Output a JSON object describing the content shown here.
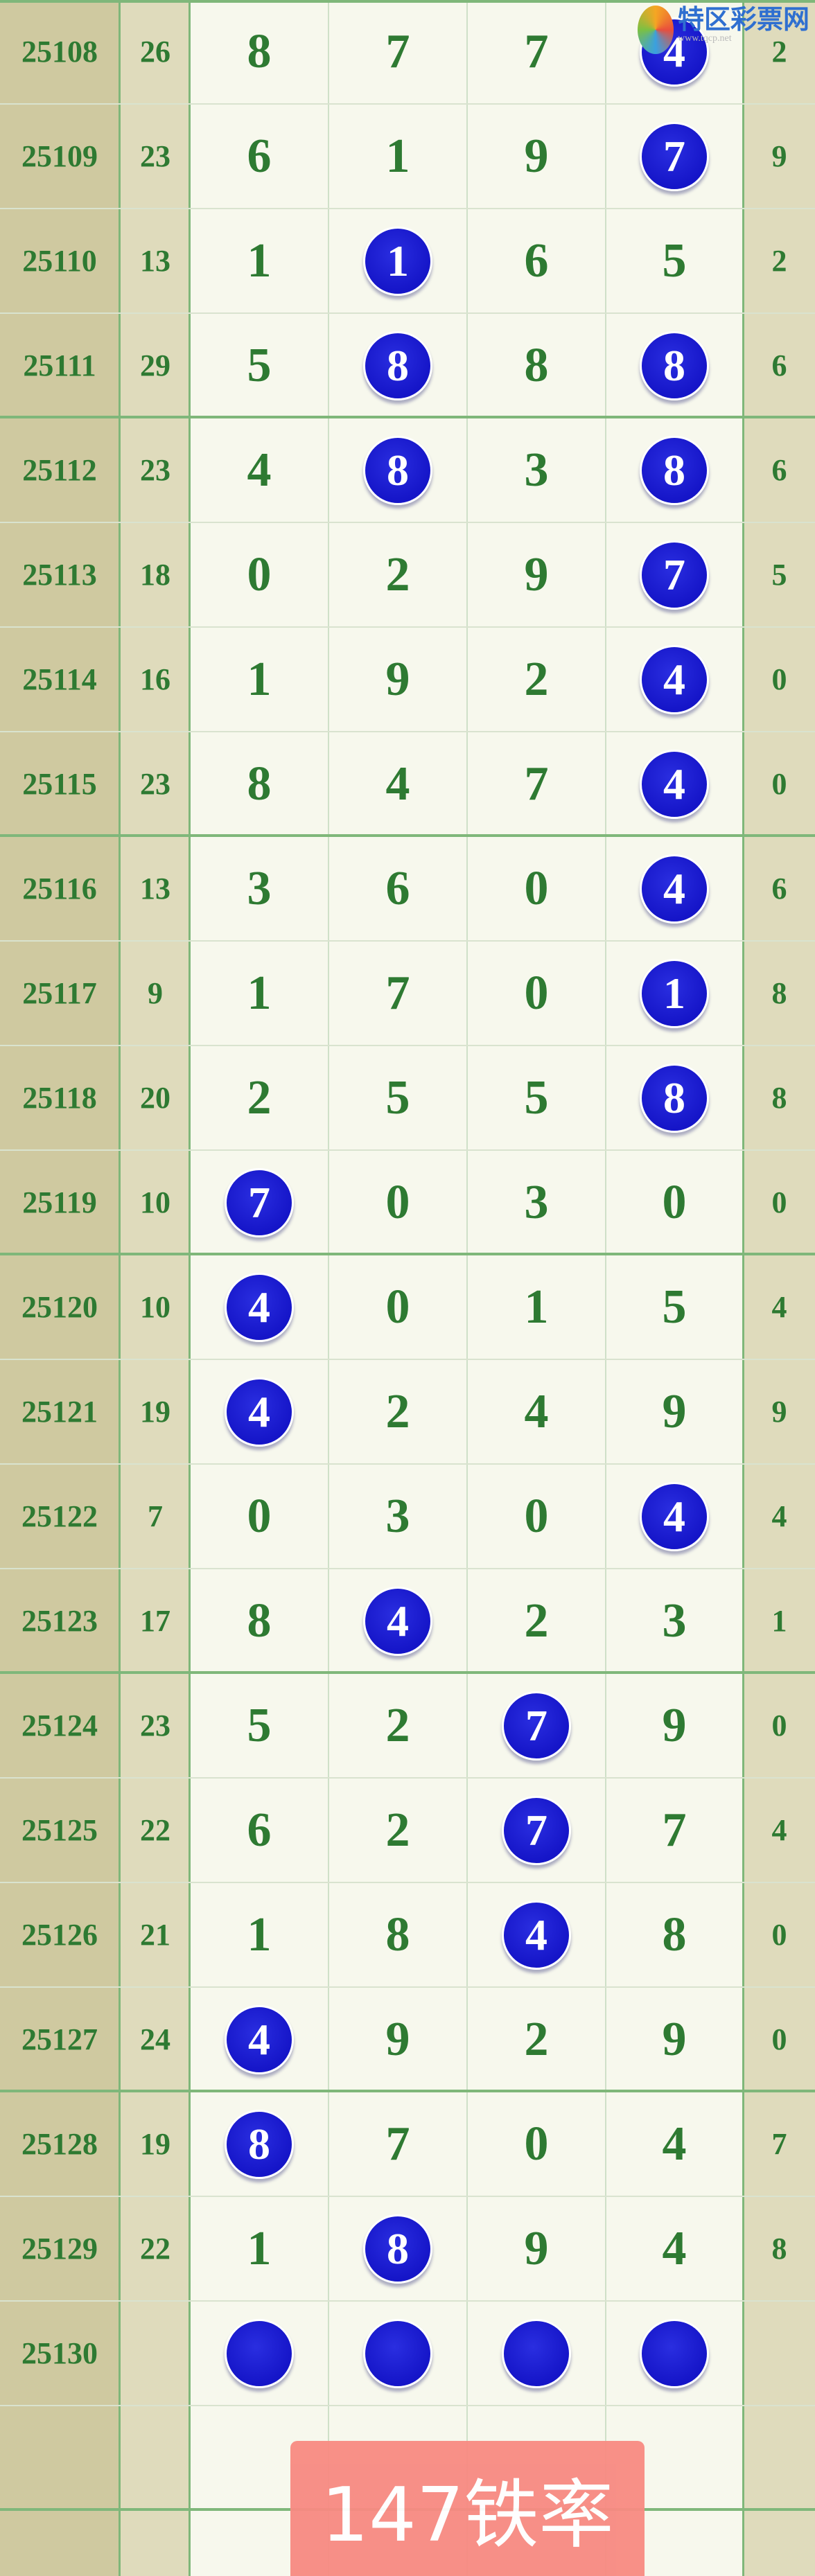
{
  "colors": {
    "issue_col": "#cfc9a0",
    "side_col": "#dfdbbc",
    "main_bg": "#f7f8ed",
    "digit": "#2e7a32",
    "ball": "#1a1acc",
    "banner": "#f88a82",
    "grid_line": "#7fb77a"
  },
  "watermark": {
    "name": "特区彩票网",
    "url": "www.tqcp.net"
  },
  "rows": [
    {
      "issue": "25108",
      "sum": "26",
      "nums": [
        "8",
        "7",
        "7",
        "4"
      ],
      "hits": [
        3
      ],
      "tail": "2"
    },
    {
      "issue": "25109",
      "sum": "23",
      "nums": [
        "6",
        "1",
        "9",
        "7"
      ],
      "hits": [
        3
      ],
      "tail": "9"
    },
    {
      "issue": "25110",
      "sum": "13",
      "nums": [
        "1",
        "1",
        "6",
        "5"
      ],
      "hits": [
        1
      ],
      "tail": "2"
    },
    {
      "issue": "25111",
      "sum": "29",
      "nums": [
        "5",
        "8",
        "8",
        "8"
      ],
      "hits": [
        1,
        3
      ],
      "tail": "6"
    },
    {
      "issue": "25112",
      "sum": "23",
      "nums": [
        "4",
        "8",
        "3",
        "8"
      ],
      "hits": [
        1,
        3
      ],
      "tail": "6"
    },
    {
      "issue": "25113",
      "sum": "18",
      "nums": [
        "0",
        "2",
        "9",
        "7"
      ],
      "hits": [
        3
      ],
      "tail": "5"
    },
    {
      "issue": "25114",
      "sum": "16",
      "nums": [
        "1",
        "9",
        "2",
        "4"
      ],
      "hits": [
        3
      ],
      "tail": "0"
    },
    {
      "issue": "25115",
      "sum": "23",
      "nums": [
        "8",
        "4",
        "7",
        "4"
      ],
      "hits": [
        3
      ],
      "tail": "0"
    },
    {
      "issue": "25116",
      "sum": "13",
      "nums": [
        "3",
        "6",
        "0",
        "4"
      ],
      "hits": [
        3
      ],
      "tail": "6"
    },
    {
      "issue": "25117",
      "sum": "9",
      "nums": [
        "1",
        "7",
        "0",
        "1"
      ],
      "hits": [
        3
      ],
      "tail": "8"
    },
    {
      "issue": "25118",
      "sum": "20",
      "nums": [
        "2",
        "5",
        "5",
        "8"
      ],
      "hits": [
        3
      ],
      "tail": "8"
    },
    {
      "issue": "25119",
      "sum": "10",
      "nums": [
        "7",
        "0",
        "3",
        "0"
      ],
      "hits": [
        0
      ],
      "tail": "0"
    },
    {
      "issue": "25120",
      "sum": "10",
      "nums": [
        "4",
        "0",
        "1",
        "5"
      ],
      "hits": [
        0
      ],
      "tail": "4"
    },
    {
      "issue": "25121",
      "sum": "19",
      "nums": [
        "4",
        "2",
        "4",
        "9"
      ],
      "hits": [
        0
      ],
      "tail": "9"
    },
    {
      "issue": "25122",
      "sum": "7",
      "nums": [
        "0",
        "3",
        "0",
        "4"
      ],
      "hits": [
        3
      ],
      "tail": "4"
    },
    {
      "issue": "25123",
      "sum": "17",
      "nums": [
        "8",
        "4",
        "2",
        "3"
      ],
      "hits": [
        1
      ],
      "tail": "1"
    },
    {
      "issue": "25124",
      "sum": "23",
      "nums": [
        "5",
        "2",
        "7",
        "9"
      ],
      "hits": [
        2
      ],
      "tail": "0"
    },
    {
      "issue": "25125",
      "sum": "22",
      "nums": [
        "6",
        "2",
        "7",
        "7"
      ],
      "hits": [
        2
      ],
      "tail": "4"
    },
    {
      "issue": "25126",
      "sum": "21",
      "nums": [
        "1",
        "8",
        "4",
        "8"
      ],
      "hits": [
        2
      ],
      "tail": "0"
    },
    {
      "issue": "25127",
      "sum": "24",
      "nums": [
        "4",
        "9",
        "2",
        "9"
      ],
      "hits": [
        0
      ],
      "tail": "0"
    },
    {
      "issue": "25128",
      "sum": "19",
      "nums": [
        "8",
        "7",
        "0",
        "4"
      ],
      "hits": [
        0
      ],
      "tail": "7"
    },
    {
      "issue": "25129",
      "sum": "22",
      "nums": [
        "1",
        "8",
        "9",
        "4"
      ],
      "hits": [
        1
      ],
      "tail": "8"
    },
    {
      "issue": "25130",
      "sum": "",
      "nums": [
        "",
        "",
        "",
        ""
      ],
      "hits": [
        0,
        1,
        2,
        3
      ],
      "tail": ""
    },
    {
      "issue": "",
      "sum": "",
      "nums": [
        "",
        "",
        "",
        ""
      ],
      "hits": [],
      "tail": ""
    }
  ],
  "banner": {
    "text": "147铁率"
  }
}
